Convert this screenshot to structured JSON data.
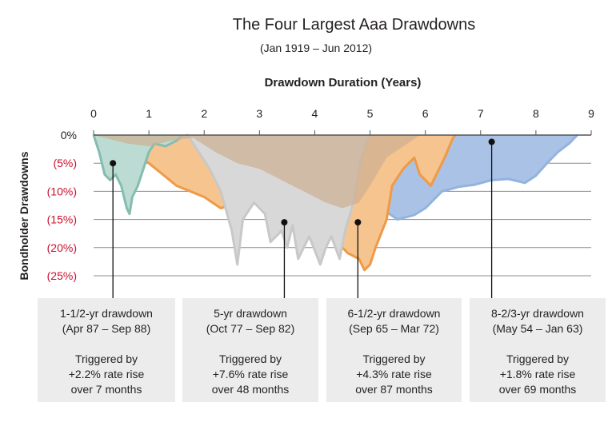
{
  "chart_data": {
    "type": "area",
    "title": "The Four Largest Aaa Drawdowns",
    "subtitle": "(Jan 1919 – Jun 2012)",
    "xlabel": "Drawdown Duration (Years)",
    "ylabel": "Bondholder Drawdowns",
    "xlim": [
      0,
      9
    ],
    "ylim": [
      -25,
      0
    ],
    "x_ticks": [
      "0",
      "1",
      "2",
      "3",
      "4",
      "5",
      "6",
      "7",
      "8",
      "9"
    ],
    "y_ticks": [
      {
        "value": 0,
        "label": "0%",
        "color": "#231f20"
      },
      {
        "value": -5,
        "label": "(5%)",
        "color": "#c8102e"
      },
      {
        "value": -10,
        "label": "(10%)",
        "color": "#c8102e"
      },
      {
        "value": -15,
        "label": "(15%)",
        "color": "#c8102e"
      },
      {
        "value": -20,
        "label": "(20%)",
        "color": "#c8102e"
      },
      {
        "value": -25,
        "label": "(25%)",
        "color": "#c8102e"
      }
    ],
    "grid": true,
    "series": [
      {
        "id": "blue",
        "fill": "#a9c2e6",
        "stroke": "#93b3df",
        "points": [
          [
            0,
            0
          ],
          [
            0.3,
            -1.5
          ],
          [
            0.6,
            -3
          ],
          [
            1,
            -4
          ],
          [
            1.5,
            -3
          ],
          [
            2,
            -2
          ],
          [
            2.5,
            -3
          ],
          [
            3,
            -4
          ],
          [
            3.5,
            -6
          ],
          [
            4,
            -7
          ],
          [
            4.5,
            -8
          ],
          [
            5,
            -10
          ],
          [
            5.2,
            -13
          ],
          [
            5.5,
            -15
          ],
          [
            5.8,
            -14.2
          ],
          [
            6,
            -13
          ],
          [
            6.3,
            -10
          ],
          [
            6.6,
            -9.2
          ],
          [
            6.9,
            -8.8
          ],
          [
            7.2,
            -8
          ],
          [
            7.5,
            -7.8
          ],
          [
            7.8,
            -8.5
          ],
          [
            8,
            -7.2
          ],
          [
            8.2,
            -5
          ],
          [
            8.4,
            -3
          ],
          [
            8.6,
            -1.5
          ],
          [
            8.75,
            0
          ]
        ]
      },
      {
        "id": "orange",
        "fill": "#f6c48f",
        "stroke": "#ee9a47",
        "points": [
          [
            0,
            0
          ],
          [
            0.5,
            -2
          ],
          [
            1,
            -5
          ],
          [
            1.5,
            -9
          ],
          [
            2,
            -11
          ],
          [
            2.3,
            -13
          ],
          [
            2.6,
            -12
          ],
          [
            3,
            -10
          ],
          [
            3.3,
            -12
          ],
          [
            3.6,
            -14
          ],
          [
            4,
            -15
          ],
          [
            4.2,
            -16
          ],
          [
            4.4,
            -19
          ],
          [
            4.6,
            -21
          ],
          [
            4.8,
            -22
          ],
          [
            4.9,
            -24
          ],
          [
            5,
            -23
          ],
          [
            5.1,
            -20
          ],
          [
            5.3,
            -15
          ],
          [
            5.4,
            -9
          ],
          [
            5.6,
            -6
          ],
          [
            5.8,
            -4
          ],
          [
            5.9,
            -7
          ],
          [
            6.1,
            -9
          ],
          [
            6.2,
            -7
          ],
          [
            6.35,
            -4
          ],
          [
            6.5,
            -0.5
          ],
          [
            6.55,
            0
          ]
        ]
      },
      {
        "id": "gray",
        "fill": "#d8d8d8",
        "stroke": "#c8c8c8",
        "points": [
          [
            0,
            0
          ],
          [
            0.5,
            -0.8
          ],
          [
            1,
            -1.5
          ],
          [
            1.5,
            -1
          ],
          [
            1.7,
            0
          ],
          [
            1.9,
            -3
          ],
          [
            2.1,
            -6
          ],
          [
            2.3,
            -10
          ],
          [
            2.5,
            -17
          ],
          [
            2.6,
            -23
          ],
          [
            2.7,
            -15
          ],
          [
            2.9,
            -12
          ],
          [
            3.1,
            -14
          ],
          [
            3.2,
            -19
          ],
          [
            3.4,
            -17
          ],
          [
            3.5,
            -20
          ],
          [
            3.6,
            -16
          ],
          [
            3.7,
            -22
          ],
          [
            3.9,
            -18
          ],
          [
            4.1,
            -23
          ],
          [
            4.2,
            -20
          ],
          [
            4.3,
            -18
          ],
          [
            4.45,
            -22
          ],
          [
            4.55,
            -17
          ],
          [
            4.7,
            -12
          ],
          [
            4.8,
            -6
          ],
          [
            4.9,
            -2
          ],
          [
            5,
            0
          ]
        ]
      },
      {
        "id": "teal",
        "fill": "#bcdcd3",
        "stroke": "#85bcb0",
        "points": [
          [
            0,
            0
          ],
          [
            0.1,
            -3
          ],
          [
            0.2,
            -7
          ],
          [
            0.3,
            -8
          ],
          [
            0.4,
            -7
          ],
          [
            0.5,
            -9
          ],
          [
            0.6,
            -13
          ],
          [
            0.65,
            -14
          ],
          [
            0.7,
            -11
          ],
          [
            0.8,
            -9
          ],
          [
            0.9,
            -6
          ],
          [
            1,
            -3
          ],
          [
            1.1,
            -1.5
          ],
          [
            1.3,
            -2
          ],
          [
            1.5,
            -1
          ],
          [
            1.6,
            0
          ]
        ]
      },
      {
        "id": "beige",
        "fill": "rgba(205,175,145,0.7)",
        "stroke": "none",
        "points": [
          [
            0,
            0
          ],
          [
            0.6,
            -1.5
          ],
          [
            1,
            -2
          ],
          [
            1.4,
            -1
          ],
          [
            1.8,
            -0.5
          ],
          [
            2.2,
            -3
          ],
          [
            2.6,
            -5
          ],
          [
            3,
            -6
          ],
          [
            3.4,
            -8
          ],
          [
            3.8,
            -10
          ],
          [
            4.2,
            -12
          ],
          [
            4.5,
            -13
          ],
          [
            4.8,
            -12
          ],
          [
            5,
            -9
          ],
          [
            5.3,
            -4
          ],
          [
            5.6,
            -2
          ],
          [
            5.9,
            0
          ]
        ]
      }
    ],
    "annotations": [
      {
        "marker_x": 0.35,
        "marker_y": -5,
        "head": "1-1/2-yr drawdown",
        "period": "(Apr 87 – Sep 88)",
        "line1": "Triggered by",
        "line2": "+2.2% rate rise",
        "line3": "over 7 months"
      },
      {
        "marker_x": 3.45,
        "marker_y": -15.5,
        "head": "5-yr drawdown",
        "period": "(Oct 77 – Sep 82)",
        "line1": "Triggered by",
        "line2": "+7.6% rate rise",
        "line3": "over 48 months"
      },
      {
        "marker_x": 4.78,
        "marker_y": -15.5,
        "head": "6-1/2-yr drawdown",
        "period": "(Sep 65 – Mar 72)",
        "line1": "Triggered by",
        "line2": "+4.3% rate rise",
        "line3": "over 87 months"
      },
      {
        "marker_x": 7.2,
        "marker_y": -1.2,
        "head": "8-2/3-yr drawdown",
        "period": "(May 54 – Jan 63)",
        "line1": "Triggered by",
        "line2": "+1.8% rate rise",
        "line3": "over 69 months"
      }
    ]
  }
}
